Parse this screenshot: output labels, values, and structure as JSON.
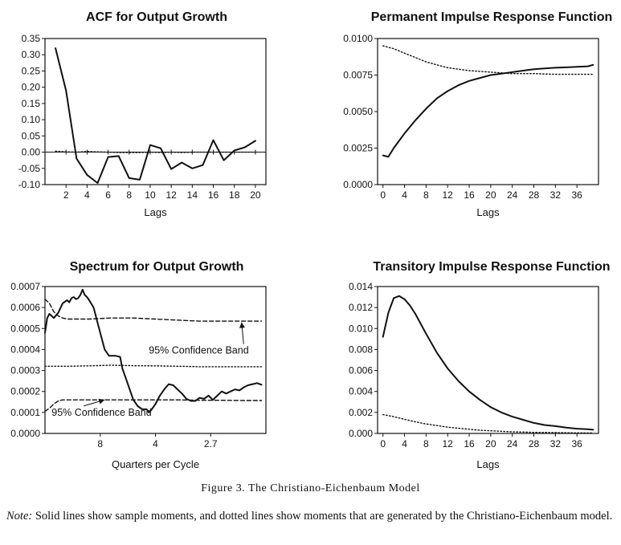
{
  "figure": {
    "caption": "Figure 3. The Christiano-Eichenbaum Model",
    "note_lead": "Note:",
    "note_text": "Solid lines show sample moments, and dotted lines show moments that are generated by the Christiano-Eichenbaum model."
  },
  "chart_data": [
    {
      "type": "line",
      "title": "ACF for Output Growth",
      "xlabel": "Lags",
      "ylabel": "",
      "xlim": [
        0,
        21
      ],
      "ylim": [
        -0.1,
        0.35
      ],
      "xticks": [
        2,
        4,
        6,
        8,
        10,
        12,
        14,
        16,
        18,
        20
      ],
      "yticks": [
        -0.1,
        -0.05,
        0.0,
        0.05,
        0.1,
        0.15,
        0.2,
        0.25,
        0.3,
        0.35
      ],
      "ytick_decimals": 2,
      "x_ticks_at_zero_line": true,
      "zero_line": true,
      "series": [
        {
          "style": "solid",
          "x": [
            1,
            2,
            3,
            4,
            5,
            6,
            7,
            8,
            9,
            10,
            11,
            12,
            13,
            14,
            15,
            16,
            17,
            18,
            19,
            20
          ],
          "values": [
            0.32,
            0.19,
            -0.02,
            -0.07,
            -0.095,
            -0.015,
            -0.012,
            -0.08,
            -0.085,
            0.022,
            0.012,
            -0.052,
            -0.032,
            -0.05,
            -0.04,
            0.037,
            -0.025,
            0.005,
            0.015,
            0.035
          ]
        },
        {
          "style": "dotted",
          "x": [
            1,
            2,
            3,
            4,
            5,
            6,
            7,
            8,
            9,
            10,
            11,
            12,
            13,
            14,
            15,
            16,
            17,
            18,
            19,
            20
          ],
          "values": [
            0.003,
            0.001,
            0.0,
            0.002,
            0.001,
            0.0,
            -0.001,
            -0.001,
            -0.001,
            0.0,
            -0.001,
            0.0,
            -0.001,
            0.0,
            0.0,
            0.0,
            0.0,
            0.0,
            0.0,
            0.0
          ]
        }
      ]
    },
    {
      "type": "line",
      "title": "Permanent Impulse Response Function",
      "xlabel": "Lags",
      "ylabel": "",
      "xlim": [
        -1,
        40
      ],
      "ylim": [
        0,
        0.01
      ],
      "xticks": [
        0,
        4,
        8,
        12,
        16,
        20,
        24,
        28,
        32,
        36
      ],
      "yticks": [
        0.0,
        0.0025,
        0.005,
        0.0075,
        0.01
      ],
      "ytick_decimals": 4,
      "series": [
        {
          "style": "solid",
          "x": [
            0,
            1,
            2,
            4,
            6,
            8,
            10,
            12,
            14,
            16,
            18,
            20,
            22,
            24,
            26,
            28,
            30,
            32,
            34,
            36,
            38,
            39
          ],
          "values": [
            0.002,
            0.0019,
            0.0025,
            0.0035,
            0.0044,
            0.0052,
            0.0059,
            0.0064,
            0.0068,
            0.0071,
            0.0073,
            0.0075,
            0.0076,
            0.0077,
            0.0078,
            0.0079,
            0.00795,
            0.008,
            0.00803,
            0.00806,
            0.0081,
            0.0082
          ]
        },
        {
          "style": "dotted",
          "x": [
            0,
            1,
            2,
            4,
            6,
            8,
            10,
            12,
            14,
            16,
            18,
            20,
            24,
            28,
            32,
            36,
            39
          ],
          "values": [
            0.0095,
            0.0094,
            0.0093,
            0.009,
            0.0087,
            0.0084,
            0.0082,
            0.008,
            0.0079,
            0.0078,
            0.00775,
            0.0077,
            0.0076,
            0.0076,
            0.00755,
            0.00755,
            0.00755
          ]
        }
      ]
    },
    {
      "type": "line",
      "title": "Spectrum for Output Growth",
      "xlabel": "Quarters per Cycle",
      "ylabel": "",
      "xlim": [
        0,
        100
      ],
      "ylim": [
        0,
        0.0007
      ],
      "xticks": [
        25,
        50,
        75
      ],
      "xtick_labels": [
        "8",
        "4",
        "2.7"
      ],
      "yticks": [
        0.0,
        0.0001,
        0.0002,
        0.0003,
        0.0004,
        0.0005,
        0.0006,
        0.0007
      ],
      "ytick_decimals": 4,
      "annotations": [
        {
          "text": "95% Confidence Band",
          "x": 47,
          "y": 0.00038,
          "arrow_to": [
            89,
            0.00053
          ]
        },
        {
          "text": "95% Confidence Band",
          "x": 3,
          "y": 8.5e-05,
          "arrow_to": [
            27,
            0.00016
          ]
        }
      ],
      "series": [
        {
          "style": "solid",
          "x": [
            0,
            1,
            2,
            3,
            4,
            6,
            8,
            10,
            11,
            12,
            13,
            14,
            15,
            16,
            17,
            18,
            19,
            20,
            22,
            24,
            26,
            27,
            29,
            30,
            32,
            34,
            35,
            37,
            38,
            40,
            42,
            44,
            46,
            47,
            48,
            50,
            52,
            54,
            56,
            58,
            60,
            62,
            64,
            66,
            68,
            70,
            72,
            74,
            76,
            78,
            80,
            82,
            84,
            86,
            88,
            90,
            92,
            94,
            96,
            98
          ],
          "values": [
            0.00048,
            0.00055,
            0.00057,
            0.00056,
            0.00055,
            0.000575,
            0.00062,
            0.000635,
            0.000625,
            0.000645,
            0.00065,
            0.00064,
            0.000645,
            0.00066,
            0.000685,
            0.00066,
            0.00065,
            0.000635,
            0.0006,
            0.00052,
            0.00044,
            0.0004,
            0.00037,
            0.00037,
            0.00037,
            0.000365,
            0.00031,
            0.00025,
            0.00022,
            0.00016,
            0.00013,
            0.000115,
            0.000115,
            0.0001,
            0.00011,
            0.00014,
            0.00018,
            0.00021,
            0.000235,
            0.00023,
            0.00021,
            0.00019,
            0.000165,
            0.000155,
            0.000155,
            0.00017,
            0.000165,
            0.00018,
            0.00016,
            0.00018,
            0.0002,
            0.00019,
            0.0002,
            0.00021,
            0.000205,
            0.00022,
            0.00023,
            0.000235,
            0.00024,
            0.000232
          ]
        },
        {
          "style": "dotted",
          "x": [
            0,
            10,
            20,
            30,
            40,
            50,
            60,
            70,
            80,
            90,
            98
          ],
          "values": [
            0.00032,
            0.00032,
            0.000322,
            0.000325,
            0.000323,
            0.000322,
            0.00032,
            0.000318,
            0.000318,
            0.000318,
            0.000318
          ]
        },
        {
          "style": "dashed",
          "x": [
            0,
            2,
            4,
            6,
            8,
            10,
            20,
            30,
            40,
            50,
            60,
            70,
            80,
            90,
            98
          ],
          "values": [
            0.00064,
            0.00062,
            0.00058,
            0.00056,
            0.00055,
            0.000545,
            0.000545,
            0.00055,
            0.00055,
            0.000545,
            0.00054,
            0.000535,
            0.000535,
            0.000535,
            0.000535
          ]
        },
        {
          "style": "dashed",
          "x": [
            0,
            2,
            4,
            6,
            8,
            10,
            20,
            30,
            40,
            50,
            60,
            70,
            80,
            90,
            98
          ],
          "values": [
            0.000105,
            0.00012,
            0.00014,
            0.000155,
            0.00016,
            0.00016,
            0.00016,
            0.00016,
            0.00016,
            0.00016,
            0.00016,
            0.000158,
            0.000158,
            0.000157,
            0.000157
          ]
        }
      ]
    },
    {
      "type": "line",
      "title": "Transitory Impulse Response Function",
      "xlabel": "Lags",
      "ylabel": "",
      "xlim": [
        -1,
        40
      ],
      "ylim": [
        0,
        0.014
      ],
      "xticks": [
        0,
        4,
        8,
        12,
        16,
        20,
        24,
        28,
        32,
        36
      ],
      "yticks": [
        0.0,
        0.002,
        0.004,
        0.006,
        0.008,
        0.01,
        0.012,
        0.014
      ],
      "ytick_decimals": 3,
      "series": [
        {
          "style": "solid",
          "x": [
            0,
            1,
            2,
            3,
            4,
            5,
            6,
            8,
            10,
            12,
            14,
            16,
            18,
            20,
            22,
            24,
            26,
            28,
            30,
            32,
            34,
            36,
            38,
            39
          ],
          "values": [
            0.0092,
            0.0115,
            0.0129,
            0.0131,
            0.0128,
            0.0122,
            0.0114,
            0.0095,
            0.0077,
            0.0062,
            0.005,
            0.004,
            0.0032,
            0.0025,
            0.002,
            0.0016,
            0.0013,
            0.001,
            0.0008,
            0.0007,
            0.00055,
            0.00045,
            0.0004,
            0.00035
          ]
        },
        {
          "style": "dotted",
          "x": [
            0,
            2,
            4,
            6,
            8,
            10,
            12,
            14,
            16,
            18,
            20,
            24,
            28,
            32,
            36,
            39
          ],
          "values": [
            0.0018,
            0.0016,
            0.00135,
            0.0011,
            0.0009,
            0.00075,
            0.0006,
            0.0005,
            0.0004,
            0.0003,
            0.00025,
            0.00015,
            0.0001,
            8e-05,
            5e-05,
            4e-05
          ]
        }
      ]
    }
  ]
}
